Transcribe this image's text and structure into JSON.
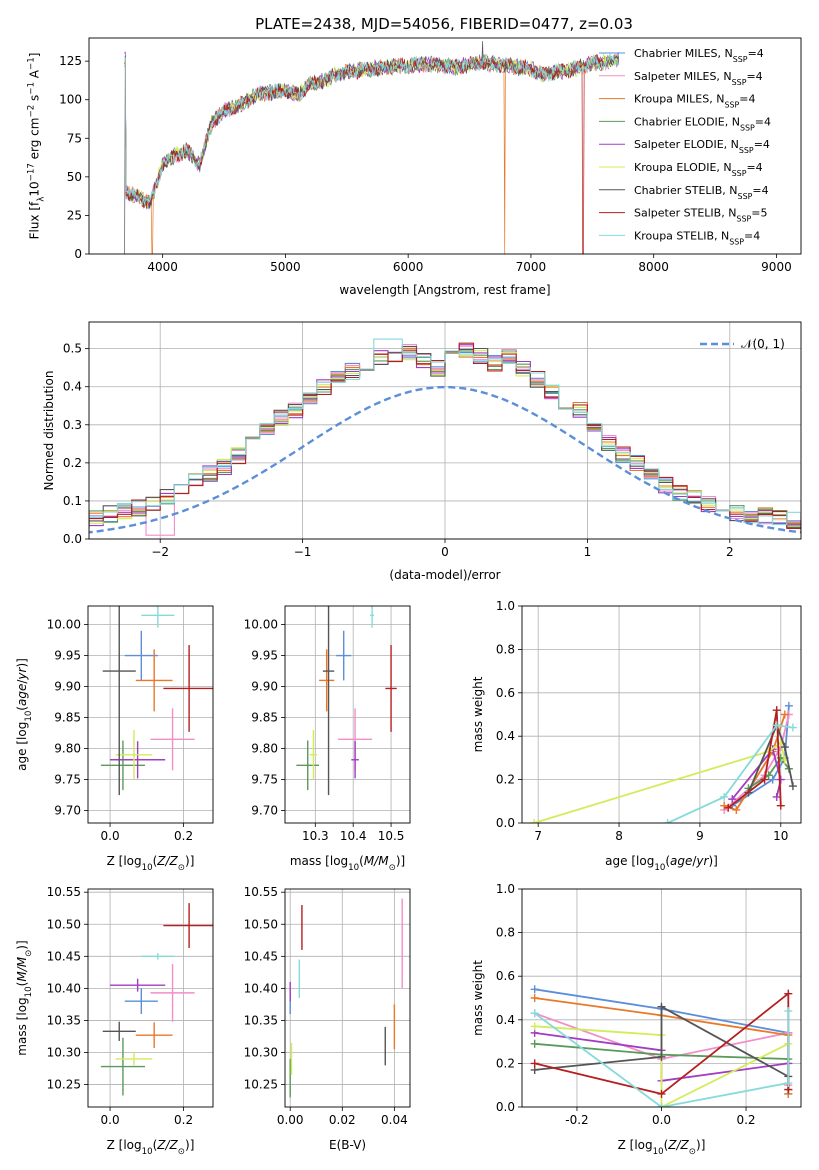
{
  "figure": {
    "title": "PLATE=2438, MJD=54056, FIBERID=0477, z=0.03"
  },
  "colors": {
    "Chabrier MILES": "#5b8fd9",
    "Salpeter MILES": "#f28ec9",
    "Kroupa MILES": "#e8782a",
    "Chabrier ELODIE": "#5a9a5a",
    "Salpeter ELODIE": "#a23cc3",
    "Kroupa ELODIE": "#d3ec5a",
    "Chabrier STELIB": "#555555",
    "Salpeter STELIB": "#b51f1f",
    "Kroupa STELIB": "#86dada"
  },
  "chart_data": [
    {
      "id": "spectrum",
      "type": "line",
      "xlabel": "wavelength [Angstrom, rest frame]",
      "ylabel": "Flux [f_λ 10^-17 erg cm^-2 s^-1 A^-1]",
      "xlim": [
        3400,
        9200
      ],
      "ylim": [
        0,
        140
      ],
      "xticks": [
        4000,
        5000,
        6000,
        7000,
        8000,
        9000
      ],
      "yticks": [
        0,
        25,
        50,
        75,
        100,
        125
      ],
      "legend_position": "upper right",
      "legend": [
        {
          "model": "Chabrier MILES",
          "label": "Chabrier MILES, N",
          "sub": "SSP",
          "tail": "=4"
        },
        {
          "model": "Salpeter MILES",
          "label": "Salpeter MILES, N",
          "sub": "SSP",
          "tail": "=4"
        },
        {
          "model": "Kroupa MILES",
          "label": "Kroupa MILES, N",
          "sub": "SSP",
          "tail": "=4"
        },
        {
          "model": "Chabrier ELODIE",
          "label": "Chabrier ELODIE, N",
          "sub": "SSP",
          "tail": "=4"
        },
        {
          "model": "Salpeter ELODIE",
          "label": "Salpeter ELODIE, N",
          "sub": "SSP",
          "tail": "=4"
        },
        {
          "model": "Kroupa ELODIE",
          "label": "Kroupa ELODIE, N",
          "sub": "SSP",
          "tail": "=4"
        },
        {
          "model": "Chabrier STELIB",
          "label": "Chabrier STELIB, N",
          "sub": "SSP",
          "tail": "=4"
        },
        {
          "model": "Salpeter STELIB",
          "label": "Salpeter STELIB, N",
          "sub": "SSP",
          "tail": "=5"
        },
        {
          "model": "Kroupa STELIB",
          "label": "Kroupa STELIB, N",
          "sub": "SSP",
          "tail": "=4"
        }
      ],
      "continuum": {
        "x": [
          3700,
          3800,
          3900,
          4000,
          4100,
          4200,
          4300,
          4400,
          4500,
          4600,
          4700,
          4800,
          4900,
          5000,
          5100,
          5200,
          5300,
          5400,
          5500,
          5600,
          5700,
          5800,
          5900,
          6000,
          6100,
          6200,
          6300,
          6400,
          6500,
          6600,
          6700,
          6800,
          6900,
          7000,
          7100,
          7200,
          7300,
          7400,
          7500,
          7600,
          7700
        ],
        "y": [
          40,
          37,
          33,
          58,
          64,
          67,
          58,
          85,
          93,
          95,
          100,
          104,
          105,
          106,
          103,
          110,
          112,
          116,
          118,
          119,
          120,
          121,
          122,
          122,
          123,
          123,
          122,
          121,
          123,
          124,
          123,
          122,
          121,
          120,
          116,
          118,
          119,
          121,
          124,
          124,
          126
        ]
      },
      "features": [
        {
          "model": "Kroupa MILES",
          "type": "dropout",
          "x": 3915
        },
        {
          "model": "Kroupa MILES",
          "type": "dropout",
          "x": 6785
        },
        {
          "model": "Salpeter STELIB",
          "type": "dropout",
          "x": 7425
        },
        {
          "model": "Chabrier STELIB",
          "type": "spike",
          "x": 6605,
          "y": 138
        },
        {
          "model": "Chabrier STELIB",
          "type": "dropout",
          "x": 3690
        }
      ]
    },
    {
      "id": "residual_histogram",
      "type": "step",
      "xlabel": "(data-model)/error",
      "ylabel": "Normed distribution",
      "xlim": [
        -2.5,
        2.5
      ],
      "ylim": [
        0,
        0.57
      ],
      "xticks": [
        -2,
        -1,
        0,
        1,
        2
      ],
      "yticks": [
        0.0,
        0.1,
        0.2,
        0.3,
        0.4,
        0.5
      ],
      "grid": true,
      "bin_width": 0.1,
      "reference_curve": {
        "label": "𝒩(0, 1)",
        "style": "dashed",
        "color": "#5b8fd9"
      },
      "envelope": [
        0.03,
        0.03,
        0.035,
        0.04,
        0.045,
        0.055,
        0.065,
        0.075,
        0.08,
        0.09,
        0.11,
        0.13,
        0.15,
        0.17,
        0.19,
        0.22,
        0.26,
        0.29,
        0.32,
        0.34,
        0.37,
        0.4,
        0.42,
        0.44,
        0.46,
        0.48,
        0.47,
        0.49,
        0.47,
        0.45,
        0.48,
        0.5,
        0.48,
        0.46,
        0.48,
        0.45,
        0.42,
        0.39,
        0.36,
        0.34,
        0.29,
        0.25,
        0.22,
        0.2,
        0.17,
        0.14,
        0.12,
        0.11,
        0.09,
        0.08,
        0.07,
        0.065,
        0.06,
        0.055,
        0.05,
        0.045,
        0.04,
        0.04,
        0.035,
        0.03
      ]
    },
    {
      "id": "age_vs_Z",
      "type": "errorbar",
      "xlabel": "Z [log10(Z/Z⊙)]",
      "ylabel": "age  [log10(age/yr)]",
      "xlim": [
        -0.06,
        0.28
      ],
      "ylim": [
        9.68,
        10.03
      ],
      "xticks": [
        0.0,
        0.2
      ],
      "yticks": [
        9.7,
        9.75,
        9.8,
        9.85,
        9.9,
        9.95,
        10.0
      ],
      "grid": true,
      "points": [
        {
          "model": "Chabrier MILES",
          "x": 0.085,
          "y": 9.95,
          "xerr": 0.045,
          "yerr": 0.04
        },
        {
          "model": "Salpeter MILES",
          "x": 0.17,
          "y": 9.815,
          "xerr": 0.06,
          "yerr": 0.05
        },
        {
          "model": "Kroupa MILES",
          "x": 0.12,
          "y": 9.91,
          "xerr": 0.05,
          "yerr": 0.05
        },
        {
          "model": "Chabrier ELODIE",
          "x": 0.035,
          "y": 9.773,
          "xerr": 0.06,
          "yerr": 0.04
        },
        {
          "model": "Salpeter ELODIE",
          "x": 0.075,
          "y": 9.782,
          "xerr": 0.075,
          "yerr": 0.03
        },
        {
          "model": "Kroupa ELODIE",
          "x": 0.065,
          "y": 9.79,
          "xerr": 0.05,
          "yerr": 0.04
        },
        {
          "model": "Chabrier STELIB",
          "x": 0.025,
          "y": 9.925,
          "xerr": 0.045,
          "yerr": 0.2
        },
        {
          "model": "Salpeter STELIB",
          "x": 0.215,
          "y": 9.897,
          "xerr": 0.07,
          "yerr": 0.07
        },
        {
          "model": "Kroupa STELIB",
          "x": 0.13,
          "y": 10.015,
          "xerr": 0.045,
          "yerr": 0.02
        }
      ]
    },
    {
      "id": "age_vs_mass",
      "type": "errorbar",
      "xlabel": "mass [log10(M/M⊙)]",
      "ylabel": "",
      "xlim": [
        10.22,
        10.55
      ],
      "ylim": [
        9.68,
        10.03
      ],
      "xticks": [
        10.3,
        10.4,
        10.5
      ],
      "yticks": [
        9.7,
        9.75,
        9.8,
        9.85,
        9.9,
        9.95,
        10.0
      ],
      "grid": true,
      "points": [
        {
          "model": "Chabrier MILES",
          "x": 10.375,
          "y": 9.95,
          "xerr": 0.02,
          "yerr": 0.04
        },
        {
          "model": "Salpeter MILES",
          "x": 10.405,
          "y": 9.815,
          "xerr": 0.045,
          "yerr": 0.05
        },
        {
          "model": "Kroupa MILES",
          "x": 10.33,
          "y": 9.91,
          "xerr": 0.02,
          "yerr": 0.05
        },
        {
          "model": "Chabrier ELODIE",
          "x": 10.28,
          "y": 9.773,
          "xerr": 0.03,
          "yerr": 0.04
        },
        {
          "model": "Salpeter ELODIE",
          "x": 10.405,
          "y": 9.782,
          "xerr": 0.01,
          "yerr": 0.03
        },
        {
          "model": "Kroupa ELODIE",
          "x": 10.295,
          "y": 9.79,
          "xerr": 0.01,
          "yerr": 0.04
        },
        {
          "model": "Chabrier STELIB",
          "x": 10.335,
          "y": 9.925,
          "xerr": 0.015,
          "yerr": 0.2
        },
        {
          "model": "Salpeter STELIB",
          "x": 10.5,
          "y": 9.897,
          "xerr": 0.015,
          "yerr": 0.07
        },
        {
          "model": "Kroupa STELIB",
          "x": 10.45,
          "y": 10.015,
          "xerr": 0.005,
          "yerr": 0.02
        }
      ]
    },
    {
      "id": "weight_vs_age",
      "type": "line",
      "xlabel": "age  [log10(age/yr)]",
      "ylabel": "mass weight",
      "xlim": [
        6.8,
        10.25
      ],
      "ylim": [
        0,
        1
      ],
      "xticks": [
        7,
        8,
        9,
        10
      ],
      "yticks": [
        0.0,
        0.2,
        0.4,
        0.6,
        0.8,
        1.0
      ],
      "grid": true,
      "series": [
        {
          "model": "Chabrier MILES",
          "x": [
            9.4,
            9.9,
            10.05,
            10.1
          ],
          "y": [
            0.08,
            0.2,
            0.3,
            0.54
          ]
        },
        {
          "model": "Salpeter MILES",
          "x": [
            9.3,
            9.8,
            10.0,
            10.1
          ],
          "y": [
            0.06,
            0.22,
            0.35,
            0.5
          ]
        },
        {
          "model": "Kroupa MILES",
          "x": [
            9.3,
            9.45,
            9.9,
            10.05
          ],
          "y": [
            0.08,
            0.06,
            0.33,
            0.5
          ]
        },
        {
          "model": "Chabrier ELODIE",
          "x": [
            9.6,
            9.85,
            10.0,
            10.1
          ],
          "y": [
            0.16,
            0.22,
            0.3,
            0.25
          ]
        },
        {
          "model": "Salpeter ELODIE",
          "x": [
            9.4,
            9.9,
            10.0,
            9.95
          ],
          "y": [
            0.11,
            0.34,
            0.2,
            0.12
          ]
        },
        {
          "model": "Kroupa ELODIE",
          "x": [
            6.95,
            9.85,
            10.0,
            10.05
          ],
          "y": [
            0.0,
            0.33,
            0.37,
            0.29
          ]
        },
        {
          "model": "Chabrier STELIB",
          "x": [
            9.6,
            9.95,
            10.05,
            10.15
          ],
          "y": [
            0.14,
            0.45,
            0.35,
            0.17
          ]
        },
        {
          "model": "Salpeter STELIB",
          "x": [
            9.35,
            9.8,
            9.95,
            10.0
          ],
          "y": [
            0.07,
            0.2,
            0.52,
            0.08
          ]
        },
        {
          "model": "Kroupa STELIB",
          "x": [
            8.6,
            9.3,
            9.95,
            10.15
          ],
          "y": [
            0.0,
            0.12,
            0.45,
            0.44
          ]
        }
      ]
    },
    {
      "id": "mass_vs_Z",
      "type": "errorbar",
      "xlabel": "Z [log10(Z/Z⊙)]",
      "ylabel": "mass [log10(M/M⊙)]",
      "xlim": [
        -0.06,
        0.28
      ],
      "ylim": [
        10.215,
        10.555
      ],
      "xticks": [
        0.0,
        0.2
      ],
      "yticks": [
        10.25,
        10.3,
        10.35,
        10.4,
        10.45,
        10.5,
        10.55
      ],
      "grid": true,
      "points": [
        {
          "model": "Chabrier MILES",
          "x": 0.085,
          "y": 10.38,
          "xerr": 0.045,
          "yerr": 0.02
        },
        {
          "model": "Salpeter MILES",
          "x": 0.17,
          "y": 10.393,
          "xerr": 0.06,
          "yerr": 0.045
        },
        {
          "model": "Kroupa MILES",
          "x": 0.12,
          "y": 10.327,
          "xerr": 0.05,
          "yerr": 0.02
        },
        {
          "model": "Chabrier ELODIE",
          "x": 0.035,
          "y": 10.278,
          "xerr": 0.06,
          "yerr": 0.045
        },
        {
          "model": "Salpeter ELODIE",
          "x": 0.075,
          "y": 10.405,
          "xerr": 0.075,
          "yerr": 0.01
        },
        {
          "model": "Kroupa ELODIE",
          "x": 0.065,
          "y": 10.29,
          "xerr": 0.05,
          "yerr": 0.01
        },
        {
          "model": "Chabrier STELIB",
          "x": 0.025,
          "y": 10.333,
          "xerr": 0.045,
          "yerr": 0.015
        },
        {
          "model": "Salpeter STELIB",
          "x": 0.215,
          "y": 10.498,
          "xerr": 0.07,
          "yerr": 0.035
        },
        {
          "model": "Kroupa STELIB",
          "x": 0.13,
          "y": 10.45,
          "xerr": 0.045,
          "yerr": 0.005
        }
      ]
    },
    {
      "id": "mass_vs_EBV",
      "type": "errorbar",
      "xlabel": "E(B-V)",
      "ylabel": "",
      "xlim": [
        -0.002,
        0.046
      ],
      "ylim": [
        10.215,
        10.555
      ],
      "xticks": [
        0.0,
        0.02,
        0.04
      ],
      "yticks": [
        10.25,
        10.3,
        10.35,
        10.4,
        10.45,
        10.5,
        10.55
      ],
      "grid": true,
      "points": [
        {
          "model": "Chabrier MILES",
          "x": 0.0,
          "y": 10.38,
          "yerr": 0.02
        },
        {
          "model": "Salpeter MILES",
          "x": 0.043,
          "y": 10.47,
          "yerr": 0.07
        },
        {
          "model": "Kroupa MILES",
          "x": 0.04,
          "y": 10.34,
          "yerr": 0.035
        },
        {
          "model": "Chabrier ELODIE",
          "x": 0.0,
          "y": 10.26,
          "yerr": 0.03
        },
        {
          "model": "Salpeter ELODIE",
          "x": 0.0,
          "y": 10.395,
          "yerr": 0.015
        },
        {
          "model": "Kroupa ELODIE",
          "x": 0.0005,
          "y": 10.29,
          "yerr": 0.025
        },
        {
          "model": "Chabrier STELIB",
          "x": 0.0365,
          "y": 10.31,
          "yerr": 0.03
        },
        {
          "model": "Salpeter STELIB",
          "x": 0.0045,
          "y": 10.495,
          "yerr": 0.035
        },
        {
          "model": "Kroupa STELIB",
          "x": 0.0035,
          "y": 10.415,
          "yerr": 0.03
        }
      ]
    },
    {
      "id": "weight_vs_Z",
      "type": "line",
      "xlabel": "Z [log10(Z/Z⊙)]",
      "ylabel": "mass weight",
      "xlim": [
        -0.33,
        0.33
      ],
      "ylim": [
        0,
        1
      ],
      "xticks": [
        -0.2,
        0.0,
        0.2
      ],
      "yticks": [
        0.0,
        0.2,
        0.4,
        0.6,
        0.8,
        1.0
      ],
      "grid": true,
      "series": [
        {
          "model": "Chabrier MILES",
          "x": [
            -0.3,
            0.0,
            0.3,
            0.3
          ],
          "y": [
            0.54,
            0.45,
            0.34,
            0.06
          ]
        },
        {
          "model": "Salpeter MILES",
          "x": [
            -0.3,
            0.0,
            0.3,
            0.3
          ],
          "y": [
            0.43,
            0.22,
            0.34,
            0.1
          ]
        },
        {
          "model": "Kroupa MILES",
          "x": [
            -0.3,
            0.0,
            0.3,
            0.3
          ],
          "y": [
            0.5,
            0.42,
            0.33,
            0.06
          ]
        },
        {
          "model": "Chabrier ELODIE",
          "x": [
            -0.3,
            0.0,
            0.3,
            0.3
          ],
          "y": [
            0.29,
            0.24,
            0.22,
            0.08
          ]
        },
        {
          "model": "Salpeter ELODIE",
          "x": [
            -0.3,
            0.0,
            0.0,
            0.3
          ],
          "y": [
            0.34,
            0.26,
            0.12,
            0.2
          ]
        },
        {
          "model": "Kroupa ELODIE",
          "x": [
            -0.3,
            0.0,
            0.0,
            0.3
          ],
          "y": [
            0.37,
            0.33,
            0.0,
            0.29
          ]
        },
        {
          "model": "Chabrier STELIB",
          "x": [
            -0.3,
            0.0,
            0.0,
            0.3
          ],
          "y": [
            0.17,
            0.23,
            0.46,
            0.14
          ]
        },
        {
          "model": "Salpeter STELIB",
          "x": [
            -0.3,
            0.0,
            0.3,
            0.3
          ],
          "y": [
            0.2,
            0.06,
            0.52,
            0.08
          ]
        },
        {
          "model": "Kroupa STELIB",
          "x": [
            -0.3,
            0.0,
            0.3,
            0.3
          ],
          "y": [
            0.43,
            0.0,
            0.11,
            0.44
          ]
        }
      ]
    }
  ]
}
